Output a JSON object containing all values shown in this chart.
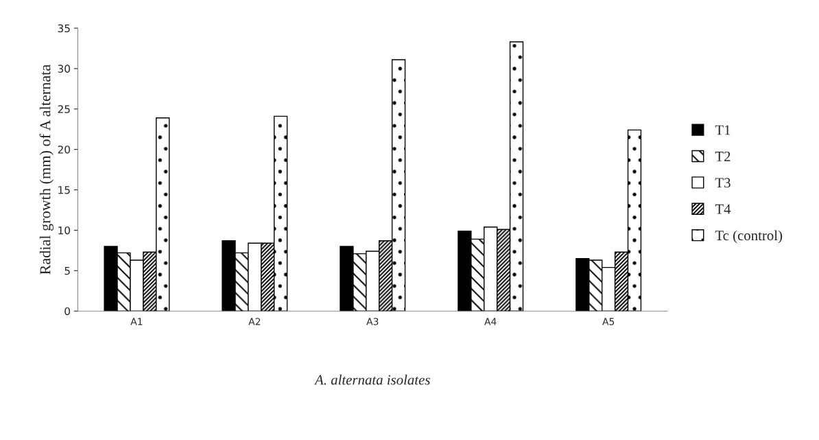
{
  "chart_data": {
    "type": "bar",
    "xlabel": "A. alternata isolates",
    "ylabel": "Radial growth (mm) of A alternata",
    "categories": [
      "A1",
      "A2",
      "A3",
      "A4",
      "A5"
    ],
    "series": [
      {
        "name": "T1",
        "color": "#000000",
        "values": [
          8.0,
          8.7,
          8.0,
          9.9,
          6.5
        ]
      },
      {
        "name": "T2",
        "color": "#ffffff",
        "values": [
          7.2,
          7.2,
          7.1,
          8.9,
          6.3
        ]
      },
      {
        "name": "T3",
        "color": "#ffffff",
        "values": [
          6.3,
          8.4,
          7.4,
          10.4,
          5.4
        ]
      },
      {
        "name": "T4",
        "color": "#ffffff",
        "values": [
          7.3,
          8.4,
          8.7,
          10.1,
          7.3
        ]
      },
      {
        "name": "Tc (control)",
        "color": "#ffffff",
        "values": [
          23.9,
          24.1,
          31.1,
          33.3,
          22.4
        ]
      }
    ],
    "ylim": [
      0,
      35
    ],
    "yticks": [
      0,
      5,
      10,
      15,
      20,
      25,
      30,
      35
    ],
    "grid": false,
    "legend": "right"
  }
}
